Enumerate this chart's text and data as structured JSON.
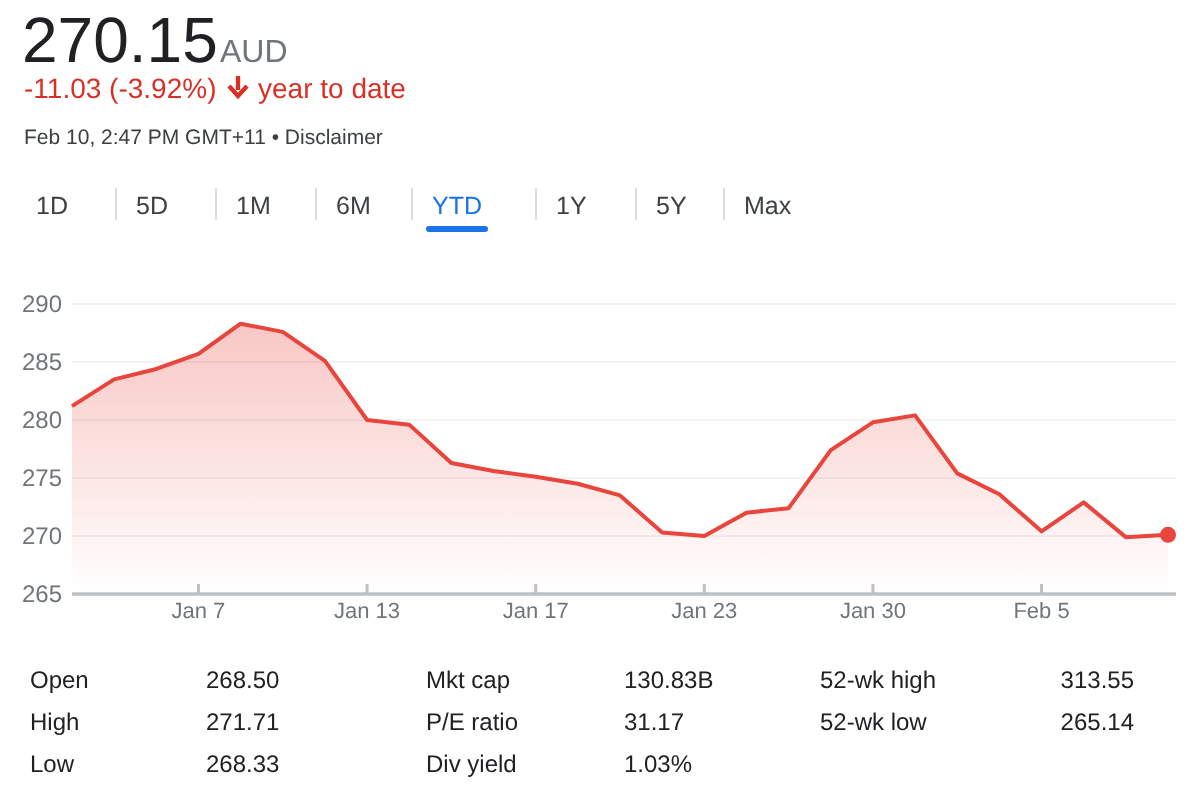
{
  "chart_data": {
    "type": "area",
    "title": "270.15",
    "annotations": [
      "AUD",
      "-11.03 (-3.92%)",
      "year to date",
      "Feb 10, 2:47 PM GMT+11 • Disclaimer",
      "1D",
      "5D",
      "1M",
      "6M",
      "YTD",
      "1Y",
      "5Y",
      "Max",
      "Open",
      "268.50",
      "Mkt cap",
      "130.83B",
      "52-wk high",
      "313.55",
      "High",
      "271.71",
      "P/E ratio",
      "31.17",
      "52-wk low",
      "265.14",
      "Low",
      "268.33",
      "Div yield",
      "1.03%"
    ],
    "categories": [
      null,
      null,
      null,
      "Jan 7",
      null,
      null,
      null,
      "Jan 13",
      null,
      null,
      null,
      "Jan 17",
      null,
      null,
      null,
      "Jan 23",
      null,
      null,
      null,
      "Jan 30",
      null,
      null,
      null,
      "Feb 5",
      null,
      null,
      null
    ],
    "series": [
      {
        "color": "#e8453c",
        "values": [
          281.2,
          283.5,
          284.4,
          285.7,
          288.3,
          287.6,
          285.1,
          280.0,
          279.6,
          276.3,
          275.6,
          275.1,
          274.5,
          273.5,
          270.3,
          270.0,
          272.0,
          272.4,
          277.4,
          279.8,
          280.4,
          275.4,
          273.6,
          270.4,
          272.9,
          269.9,
          270.1
        ]
      }
    ],
    "ylim": [
      265,
      290
    ],
    "yticks": [
      265,
      270,
      275,
      280,
      285,
      290
    ],
    "grid": "y"
  }
}
